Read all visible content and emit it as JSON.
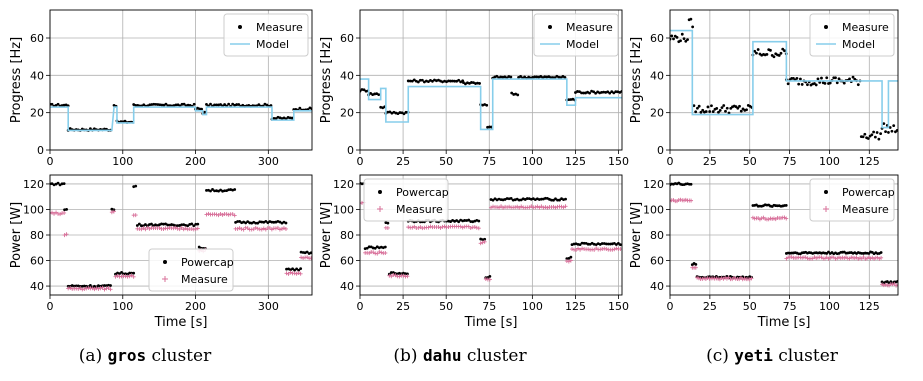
{
  "colors": {
    "measure": "#000000",
    "model": "#87ceeb",
    "powercap": "#000000",
    "power_measure": "#d8709a",
    "grid": "#b0b0b0"
  },
  "captions": [
    {
      "prefix": "(a)",
      "name": "gros",
      "suffix": "cluster"
    },
    {
      "prefix": "(b)",
      "name": "dahu",
      "suffix": "cluster"
    },
    {
      "prefix": "(c)",
      "name": "yeti",
      "suffix": "cluster"
    }
  ],
  "chart_data": [
    {
      "type": "scatter",
      "panel": "gros-progress",
      "ylabel": "Progress [Hz]",
      "xlabel": "",
      "xlim": [
        0,
        360
      ],
      "ylim": [
        0,
        75
      ],
      "xticks": [
        0,
        100,
        200,
        300
      ],
      "yticks": [
        0,
        20,
        40,
        60
      ],
      "grid": true,
      "legend": "top-right",
      "series": [
        {
          "name": "Measure",
          "style": "dots",
          "segments": [
            [
              0,
              25,
              24
            ],
            [
              25,
              85,
              11
            ],
            [
              88,
              92,
              24
            ],
            [
              92,
              115,
              15
            ],
            [
              115,
              200,
              24
            ],
            [
              200,
              210,
              22
            ],
            [
              210,
              215,
              20
            ],
            [
              215,
              305,
              24
            ],
            [
              305,
              335,
              17
            ],
            [
              335,
              360,
              22
            ]
          ]
        },
        {
          "name": "Model",
          "style": "line",
          "segments": [
            [
              0,
              25,
              23
            ],
            [
              25,
              85,
              10.5
            ],
            [
              88,
              92,
              23
            ],
            [
              92,
              115,
              14.5
            ],
            [
              115,
              200,
              23
            ],
            [
              200,
              210,
              21
            ],
            [
              210,
              215,
              19
            ],
            [
              215,
              305,
              23
            ],
            [
              305,
              335,
              16
            ],
            [
              335,
              360,
              21
            ]
          ]
        }
      ]
    },
    {
      "type": "scatter",
      "panel": "dahu-progress",
      "ylabel": "Progress [Hz]",
      "xlabel": "",
      "xlim": [
        0,
        152
      ],
      "ylim": [
        0,
        75
      ],
      "xticks": [
        0,
        25,
        50,
        75,
        100,
        125,
        150
      ],
      "yticks": [
        0,
        20,
        40,
        60
      ],
      "grid": true,
      "legend": "top-right",
      "series": [
        {
          "name": "Measure",
          "style": "dots",
          "segments": [
            [
              0,
              5,
              32
            ],
            [
              5,
              12,
              30
            ],
            [
              12,
              15,
              23
            ],
            [
              15,
              28,
              20
            ],
            [
              28,
              60,
              37
            ],
            [
              60,
              70,
              36
            ],
            [
              70,
              74,
              24
            ],
            [
              74,
              77,
              12
            ],
            [
              77,
              88,
              39
            ],
            [
              88,
              92,
              30
            ],
            [
              92,
              120,
              39
            ],
            [
              120,
              125,
              27
            ],
            [
              125,
              152,
              31
            ]
          ]
        },
        {
          "name": "Model",
          "style": "line",
          "segments": [
            [
              0,
              5,
              38
            ],
            [
              5,
              12,
              27
            ],
            [
              12,
              15,
              33
            ],
            [
              15,
              28,
              15
            ],
            [
              28,
              70,
              34
            ],
            [
              70,
              77,
              11
            ],
            [
              77,
              120,
              38
            ],
            [
              120,
              125,
              24
            ],
            [
              125,
              152,
              28
            ]
          ]
        }
      ]
    },
    {
      "type": "scatter",
      "panel": "yeti-progress",
      "ylabel": "Progress [Hz]",
      "xlabel": "",
      "xlim": [
        0,
        143
      ],
      "ylim": [
        0,
        75
      ],
      "xticks": [
        0,
        25,
        50,
        75,
        100,
        125
      ],
      "yticks": [
        0,
        20,
        40,
        60
      ],
      "grid": true,
      "legend": "top-right",
      "series": [
        {
          "name": "Measure",
          "style": "dots",
          "segments": [
            [
              0,
              12,
              60
            ],
            [
              12,
              15,
              68
            ],
            [
              15,
              52,
              22
            ],
            [
              52,
              73,
              52
            ],
            [
              73,
              120,
              37
            ],
            [
              120,
              133,
              8
            ],
            [
              133,
              137,
              12
            ],
            [
              137,
              143,
              11
            ]
          ]
        },
        {
          "name": "Model",
          "style": "line",
          "segments": [
            [
              0,
              14,
              64
            ],
            [
              14,
              52,
              19
            ],
            [
              52,
              73,
              58
            ],
            [
              73,
              133,
              37
            ],
            [
              133,
              137,
              12
            ],
            [
              137,
              143,
              37
            ]
          ]
        }
      ]
    },
    {
      "type": "scatter",
      "panel": "gros-power",
      "ylabel": "Power [W]",
      "xlabel": "Time [s]",
      "xlim": [
        0,
        360
      ],
      "ylim": [
        33,
        127
      ],
      "xticks": [
        0,
        100,
        200,
        300
      ],
      "yticks": [
        40,
        60,
        80,
        100,
        120
      ],
      "grid": true,
      "legend": "bottom-center",
      "series": [
        {
          "name": "Powercap",
          "style": "dots",
          "segments": [
            [
              0,
              20,
              120
            ],
            [
              20,
              25,
              100
            ],
            [
              25,
              85,
              40
            ],
            [
              85,
              90,
              100
            ],
            [
              90,
              115,
              50
            ],
            [
              115,
              120,
              118
            ],
            [
              120,
              205,
              88
            ],
            [
              205,
              215,
              70
            ],
            [
              215,
              255,
              115
            ],
            [
              255,
              325,
              90
            ],
            [
              325,
              345,
              53
            ],
            [
              345,
              360,
              66
            ]
          ]
        },
        {
          "name": "Measure",
          "style": "plus",
          "segments": [
            [
              0,
              20,
              97
            ],
            [
              20,
              25,
              80
            ],
            [
              25,
              85,
              38
            ],
            [
              85,
              90,
              98
            ],
            [
              90,
              115,
              48
            ],
            [
              115,
              120,
              95
            ],
            [
              120,
              205,
              85
            ],
            [
              205,
              215,
              68
            ],
            [
              215,
              255,
              96
            ],
            [
              255,
              325,
              85
            ],
            [
              325,
              345,
              50
            ],
            [
              345,
              360,
              62
            ]
          ]
        }
      ]
    },
    {
      "type": "scatter",
      "panel": "dahu-power",
      "ylabel": "Power [W]",
      "xlabel": "Time [s]",
      "xlim": [
        0,
        152
      ],
      "ylim": [
        33,
        127
      ],
      "xticks": [
        0,
        25,
        50,
        75,
        100,
        125,
        150
      ],
      "yticks": [
        40,
        60,
        80,
        100,
        120
      ],
      "grid": true,
      "legend": "top-left",
      "series": [
        {
          "name": "Powercap",
          "style": "dots",
          "segments": [
            [
              0,
              3,
              120
            ],
            [
              3,
              15,
              70
            ],
            [
              15,
              17,
              90
            ],
            [
              17,
              28,
              50
            ],
            [
              28,
              70,
              91
            ],
            [
              70,
              73,
              77
            ],
            [
              73,
              76,
              47
            ],
            [
              76,
              120,
              108
            ],
            [
              120,
              123,
              62
            ],
            [
              123,
              152,
              73
            ]
          ]
        },
        {
          "name": "Measure",
          "style": "plus",
          "segments": [
            [
              0,
              3,
              105
            ],
            [
              3,
              15,
              66
            ],
            [
              15,
              17,
              86
            ],
            [
              17,
              28,
              48
            ],
            [
              28,
              70,
              86
            ],
            [
              70,
              73,
              74
            ],
            [
              73,
              76,
              45
            ],
            [
              76,
              120,
              102
            ],
            [
              120,
              123,
              60
            ],
            [
              123,
              152,
              69
            ]
          ]
        }
      ]
    },
    {
      "type": "scatter",
      "panel": "yeti-power",
      "ylabel": "Power [W]",
      "xlabel": "Time [s]",
      "xlim": [
        0,
        143
      ],
      "ylim": [
        33,
        127
      ],
      "xticks": [
        0,
        25,
        50,
        75,
        100,
        125
      ],
      "yticks": [
        40,
        60,
        80,
        100,
        120
      ],
      "grid": true,
      "legend": "top-right",
      "series": [
        {
          "name": "Powercap",
          "style": "dots",
          "segments": [
            [
              0,
              14,
              120
            ],
            [
              14,
              17,
              57
            ],
            [
              17,
              52,
              47
            ],
            [
              52,
              73,
              103
            ],
            [
              73,
              133,
              66
            ],
            [
              133,
              143,
              43
            ]
          ]
        },
        {
          "name": "Measure",
          "style": "plus",
          "segments": [
            [
              0,
              14,
              107
            ],
            [
              14,
              17,
              55
            ],
            [
              17,
              52,
              46
            ],
            [
              52,
              73,
              93
            ],
            [
              73,
              133,
              62
            ],
            [
              133,
              143,
              41
            ]
          ]
        }
      ]
    }
  ]
}
